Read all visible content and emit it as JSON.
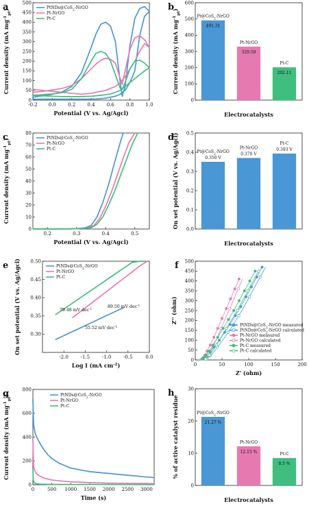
{
  "colors": {
    "blue": "#4a97d6",
    "pink": "#e57ab0",
    "green": "#3fbf7f"
  },
  "chart_data": [
    {
      "id": "a",
      "type": "line",
      "letter": "a",
      "xlabel": "Potential (V vs. Ag/Agcl)",
      "ylabel": "Current density (mA mg",
      "ylabel_sup": "-1",
      "ylabel_sub": "pt",
      "ylabel_end": ")",
      "xlim": [
        -0.2,
        1.0
      ],
      "ylim": [
        0,
        500
      ],
      "xticks": [
        "-0.2",
        "0.0",
        "0.2",
        "0.4",
        "0.6",
        "0.8",
        "1.0"
      ],
      "yticks": [
        "0",
        "50",
        "100",
        "150",
        "200",
        "250",
        "300",
        "350",
        "400",
        "450",
        "500"
      ],
      "legend": [
        "PtNDs@CoS2-NrGO",
        "Pt-NrGO",
        "Pt-C"
      ],
      "series": [
        {
          "name": "PtNDs@CoS2-NrGO",
          "color": "blue",
          "x": [
            -0.2,
            -0.1,
            0.0,
            0.1,
            0.2,
            0.3,
            0.4,
            0.45,
            0.5,
            0.55,
            0.6,
            0.65,
            0.7,
            0.72,
            0.75,
            0.8,
            0.85,
            0.9,
            0.95,
            1.0,
            0.95,
            0.9,
            0.85,
            0.8,
            0.75,
            0.7,
            0.65,
            0.6,
            0.55,
            0.5,
            0.45,
            0.4,
            0.3,
            0.2,
            0.1,
            0.0,
            -0.1,
            -0.2
          ],
          "y": [
            15,
            22,
            30,
            42,
            70,
            140,
            270,
            340,
            390,
            400,
            380,
            300,
            90,
            20,
            70,
            280,
            420,
            470,
            480,
            455,
            430,
            330,
            150,
            90,
            50,
            30,
            20,
            15,
            10,
            8,
            6,
            5,
            5,
            5,
            5,
            5,
            5,
            5
          ]
        },
        {
          "name": "Pt-NrGO",
          "color": "pink",
          "x": [
            -0.2,
            -0.1,
            0.0,
            0.1,
            0.2,
            0.3,
            0.4,
            0.45,
            0.5,
            0.55,
            0.6,
            0.65,
            0.7,
            0.72,
            0.75,
            0.8,
            0.85,
            0.9,
            0.95,
            1.0,
            0.95,
            0.9,
            0.85,
            0.8,
            0.75,
            0.7,
            0.65,
            0.6,
            0.55,
            0.5,
            0.45,
            0.4,
            0.3,
            0.2,
            0.1,
            0.0,
            -0.1,
            -0.2
          ],
          "y": [
            40,
            45,
            52,
            60,
            75,
            110,
            160,
            185,
            205,
            215,
            210,
            190,
            110,
            80,
            150,
            260,
            320,
            330,
            310,
            270,
            290,
            250,
            200,
            160,
            120,
            90,
            70,
            60,
            50,
            45,
            40,
            35,
            30,
            35,
            40,
            45,
            50,
            55
          ]
        },
        {
          "name": "Pt-C",
          "color": "green",
          "x": [
            -0.2,
            -0.1,
            0.0,
            0.1,
            0.2,
            0.3,
            0.4,
            0.45,
            0.5,
            0.55,
            0.6,
            0.65,
            0.7,
            0.72,
            0.75,
            0.8,
            0.85,
            0.9,
            0.95,
            1.0,
            0.95,
            0.9,
            0.85,
            0.8,
            0.75,
            0.7,
            0.65,
            0.6,
            0.55,
            0.5,
            0.45,
            0.4,
            0.3,
            0.2,
            0.1,
            0.0,
            -0.1,
            -0.2
          ],
          "y": [
            25,
            28,
            32,
            38,
            55,
            110,
            200,
            240,
            250,
            240,
            200,
            130,
            60,
            55,
            90,
            160,
            200,
            205,
            190,
            165,
            150,
            130,
            110,
            90,
            70,
            50,
            40,
            32,
            28,
            25,
            22,
            20,
            18,
            18,
            18,
            20,
            22,
            24
          ]
        }
      ]
    },
    {
      "id": "b",
      "type": "bar",
      "letter": "b",
      "xlabel": "Electrocatalysts",
      "ylabel": "Current density (mA mg",
      "ylabel_sup": "-1",
      "ylabel_sub": "pt",
      "ylabel_end": ")",
      "ylim": [
        0,
        600
      ],
      "yticks": [
        "0",
        "100",
        "200",
        "300",
        "400",
        "500",
        "600"
      ],
      "categories": [
        "Pt@CoS2-NrGO",
        "Pt-NrGO",
        "Pt-C"
      ],
      "values": [
        491.31,
        329.59,
        202.11
      ],
      "labels": [
        "491.31",
        "329.59",
        "202.11"
      ],
      "colors": [
        "blue",
        "pink",
        "green"
      ]
    },
    {
      "id": "c",
      "type": "line",
      "letter": "c",
      "xlabel": "Potential (V vs. Ag/Agcl)",
      "ylabel": "Current density (mA mg",
      "ylabel_sup": "-1",
      "ylabel_sub": "pt",
      "ylabel_end": ")",
      "xlim": [
        0.15,
        0.55
      ],
      "ylim": [
        0,
        80
      ],
      "xticks": [
        "0.2",
        "0.3",
        "0.4",
        "0.5"
      ],
      "yticks": [
        "0",
        "10",
        "20",
        "30",
        "40",
        "50",
        "60",
        "70",
        "80"
      ],
      "legend": [
        "PtNDs@CoS2-NrGO",
        "Pt-NrGO",
        "Pt-C"
      ],
      "series": [
        {
          "name": "PtNDs@CoS2-NrGO",
          "color": "blue",
          "x": [
            0.15,
            0.25,
            0.3,
            0.33,
            0.35,
            0.37,
            0.39,
            0.41,
            0.43,
            0.45,
            0.46
          ],
          "y": [
            0,
            0,
            0.3,
            1,
            3,
            10,
            22,
            37,
            55,
            72,
            80
          ]
        },
        {
          "name": "Pt-NrGO",
          "color": "pink",
          "x": [
            0.15,
            0.25,
            0.3,
            0.34,
            0.36,
            0.38,
            0.4,
            0.42,
            0.44,
            0.46,
            0.48,
            0.5
          ],
          "y": [
            0,
            0,
            0.2,
            1,
            3,
            9,
            19,
            31,
            45,
            59,
            72,
            80
          ]
        },
        {
          "name": "Pt-C",
          "color": "green",
          "x": [
            0.15,
            0.25,
            0.3,
            0.35,
            0.37,
            0.39,
            0.41,
            0.43,
            0.45,
            0.47,
            0.49,
            0.51
          ],
          "y": [
            0,
            0,
            0.2,
            1,
            4,
            10,
            20,
            31,
            44,
            57,
            70,
            80
          ]
        }
      ]
    },
    {
      "id": "d",
      "type": "bar",
      "letter": "d",
      "xlabel": "Electrocatalysts",
      "ylabel": "On set potential (V vs. Ag/Agcl)",
      "ylim": [
        0.0,
        0.5
      ],
      "yticks": [
        "0.0",
        "0.1",
        "0.2",
        "0.3",
        "0.4",
        "0.5"
      ],
      "categories": [
        "Pt@CoS2-NrGO",
        "Pt-NrGO",
        "Pt-C"
      ],
      "values": [
        0.35,
        0.37,
        0.393
      ],
      "labels": [
        "0.350 V",
        "0.370 V",
        "0.393 V"
      ],
      "colors": [
        "blue",
        "blue",
        "blue"
      ]
    },
    {
      "id": "e",
      "type": "line",
      "letter": "e",
      "xlabel": "Log I (mA cm",
      "xlabel_sup": "-2",
      "xlabel_end": ")",
      "ylabel": "On set potential (V vs. Ag/Agcl)",
      "xlim": [
        -2.5,
        0.0
      ],
      "ylim": [
        0.25,
        0.5
      ],
      "xticks": [
        "-2.0",
        "-1.5",
        "-1.0",
        "-0.5",
        "0.0"
      ],
      "yticks": [
        "0.30",
        "0.35",
        "0.40",
        "0.45",
        "0.50"
      ],
      "legend": [
        "PtNDs@CoS2-NrGO",
        "Pt-NrGO",
        "Pt-C"
      ],
      "annotations": [
        "79.48 mV dec-1",
        "89.50 mV dec-1",
        "55.52 mV dec-1"
      ],
      "series": [
        {
          "name": "PtNDs@CoS2-NrGO",
          "color": "blue",
          "x": [
            -2.2,
            -2.0,
            -1.8,
            -1.6,
            -1.4,
            -1.2,
            -1.0,
            -0.8,
            -0.6
          ],
          "y": [
            0.285,
            0.296,
            0.307,
            0.318,
            0.329,
            0.34,
            0.351,
            0.362,
            0.373
          ]
        },
        {
          "name": "Pt-NrGO",
          "color": "pink",
          "x": [
            -1.8,
            -1.6,
            -1.4,
            -1.2,
            -1.0,
            -0.8,
            -0.6,
            -0.4,
            -0.2,
            -0.05
          ],
          "y": [
            0.345,
            0.363,
            0.381,
            0.399,
            0.417,
            0.435,
            0.453,
            0.471,
            0.489,
            0.5
          ]
        },
        {
          "name": "Pt-C",
          "color": "green",
          "x": [
            -2.2,
            -2.0,
            -1.8,
            -1.6,
            -1.4,
            -1.2,
            -1.0,
            -0.8,
            -0.6,
            -0.4,
            -0.2,
            -0.1
          ],
          "y": [
            0.353,
            0.369,
            0.385,
            0.401,
            0.417,
            0.433,
            0.449,
            0.465,
            0.481,
            0.497,
            0.51,
            0.52
          ]
        }
      ]
    },
    {
      "id": "f",
      "type": "scatter",
      "letter": "f",
      "xlabel": "Z' (ohm)",
      "ylabel": "Z'' (ohm)",
      "xlim": [
        0,
        200
      ],
      "ylim": [
        0,
        500
      ],
      "xticks": [
        "0",
        "50",
        "100",
        "150",
        "200"
      ],
      "yticks": [
        "0",
        "50",
        "100",
        "150",
        "200",
        "250",
        "300",
        "350",
        "400",
        "450",
        "500"
      ],
      "legend": [
        "PtNDs@CoS2-NrGO measured",
        "PtNDs@CoS2-NrGO calculated",
        "Pt-NrGO measured",
        "Pt-NrGO calculated",
        "Pt-C measured",
        "Pt-C calculated"
      ],
      "series": [
        {
          "name": "PtNDs@CoS2-NrGO measured",
          "color": "blue",
          "x": [
            15,
            18,
            22,
            28,
            35,
            45,
            55,
            65,
            75,
            85,
            95,
            105,
            115,
            125
          ],
          "y": [
            5,
            12,
            22,
            40,
            65,
            100,
            140,
            180,
            225,
            270,
            320,
            370,
            420,
            470
          ]
        },
        {
          "name": "Pt-NrGO measured",
          "color": "pink",
          "x": [
            12,
            15,
            18,
            22,
            28,
            35,
            42,
            50,
            58,
            66,
            74,
            82
          ],
          "y": [
            5,
            12,
            25,
            45,
            75,
            115,
            160,
            210,
            260,
            310,
            360,
            410
          ]
        },
        {
          "name": "Pt-C measured",
          "color": "green",
          "x": [
            13,
            16,
            20,
            26,
            33,
            42,
            52,
            62,
            72,
            82,
            92,
            102,
            112
          ],
          "y": [
            5,
            12,
            25,
            45,
            75,
            115,
            160,
            205,
            250,
            300,
            350,
            400,
            450
          ]
        }
      ]
    },
    {
      "id": "g",
      "type": "line",
      "letter": "g",
      "xlabel": "Time (s)",
      "ylabel": "Current density (mA mg",
      "ylabel_sup": "-1",
      "ylabel_sub": "pt",
      "ylabel_end": ")",
      "xlim": [
        0,
        3200
      ],
      "ylim": [
        0,
        800
      ],
      "xticks": [
        "0",
        "500",
        "1000",
        "1500",
        "2000",
        "2500",
        "3000"
      ],
      "yticks": [
        "0",
        "200",
        "400",
        "600",
        "800"
      ],
      "legend": [
        "PtNDs@CoS2-NrGO",
        "Pt-NrGO",
        "Pt-C"
      ],
      "series": [
        {
          "name": "PtNDs@CoS2-NrGO",
          "color": "blue",
          "x": [
            0,
            20,
            60,
            100,
            200,
            300,
            400,
            500,
            700,
            1000,
            1500,
            2000,
            2500,
            3000,
            3200
          ],
          "y": [
            720,
            500,
            430,
            400,
            340,
            290,
            250,
            220,
            180,
            140,
            110,
            95,
            80,
            65,
            60
          ]
        },
        {
          "name": "Pt-NrGO",
          "color": "pink",
          "x": [
            0,
            20,
            60,
            100,
            200,
            300,
            500,
            800,
            1000,
            1500,
            2000,
            2500,
            3000,
            3200
          ],
          "y": [
            380,
            150,
            110,
            90,
            70,
            55,
            40,
            30,
            25,
            18,
            14,
            12,
            10,
            9
          ]
        },
        {
          "name": "Pt-C",
          "color": "green",
          "x": [
            0,
            10,
            30,
            60,
            100,
            200,
            500,
            1000,
            2000,
            3000,
            3200
          ],
          "y": [
            130,
            40,
            20,
            12,
            8,
            5,
            3,
            2,
            2,
            1,
            1
          ]
        }
      ]
    },
    {
      "id": "h",
      "type": "bar",
      "letter": "h",
      "xlabel": "Electrocatalysts",
      "ylabel": "% of active catalyst residue",
      "ylim": [
        0,
        30
      ],
      "yticks": [
        "0",
        "10",
        "20",
        "30"
      ],
      "categories": [
        "Pt@CoS2-NrGO",
        "Pt-NrGO",
        "Pt-C"
      ],
      "values": [
        21.27,
        12.15,
        8.5
      ],
      "labels": [
        "21.27 %",
        "12.15 %",
        "8.5 %"
      ],
      "colors": [
        "blue",
        "pink",
        "green"
      ]
    }
  ]
}
